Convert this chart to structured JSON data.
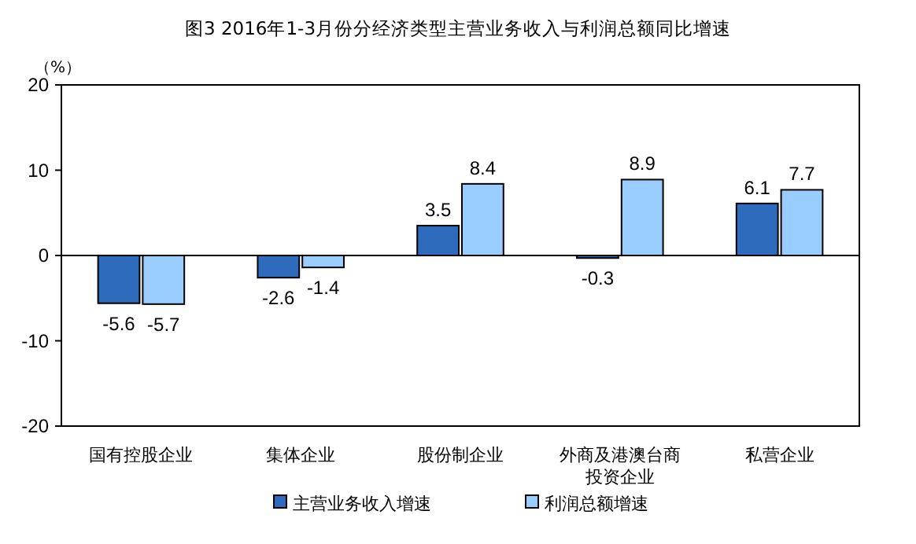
{
  "chart_data": {
    "type": "bar",
    "title": "图3  2016年1-3月份分经济类型主营业务收入与利润总额同比增速",
    "ylabel": "（%）",
    "categories": [
      "国有控股企业",
      "集体企业",
      "股份制企业",
      "外商及港澳台商投资企业",
      "私营企业"
    ],
    "series": [
      {
        "name": "主营业务收入增速",
        "color": "#2e6bbd",
        "values": [
          -5.6,
          -2.6,
          3.5,
          -0.3,
          6.1
        ]
      },
      {
        "name": "利润总额增速",
        "color": "#99ccff",
        "values": [
          -5.7,
          -1.4,
          8.4,
          8.9,
          7.7
        ]
      }
    ],
    "ylim": [
      -20,
      20
    ],
    "yticks": [
      -20,
      -10,
      0,
      10,
      20
    ],
    "legend": "bottom",
    "data_labels": true
  }
}
